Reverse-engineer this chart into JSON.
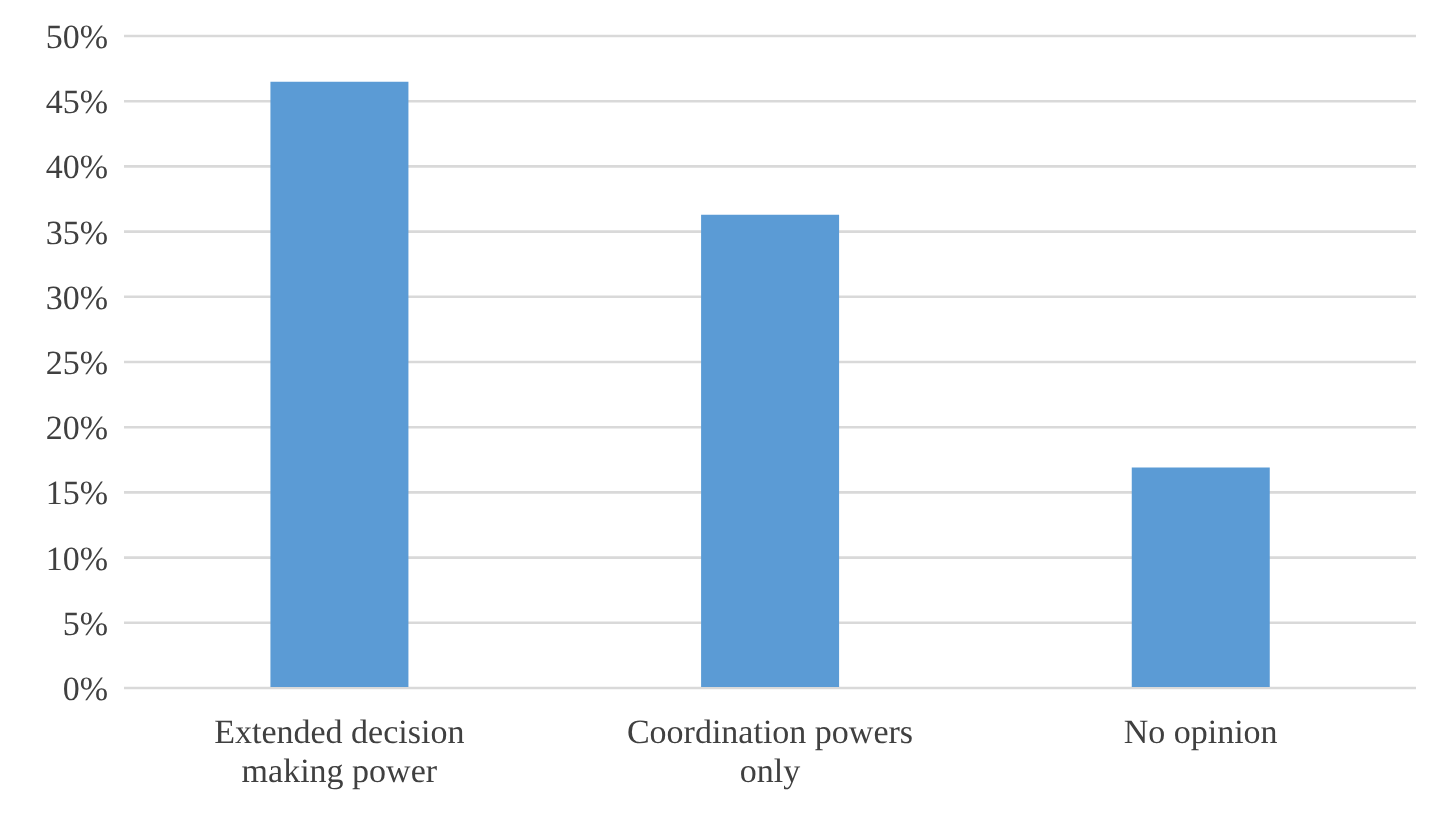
{
  "chart_data": {
    "type": "bar",
    "categories": [
      "Extended decision making power",
      "Coordination powers only",
      "No opinion"
    ],
    "values": [
      46.5,
      36.3,
      16.9
    ],
    "color": "#5b9bd5",
    "ylim": [
      0,
      50
    ],
    "yticks": [
      {
        "value": 0,
        "label": "0%"
      },
      {
        "value": 5,
        "label": "5%"
      },
      {
        "value": 10,
        "label": "10%"
      },
      {
        "value": 15,
        "label": "15%"
      },
      {
        "value": 20,
        "label": "20%"
      },
      {
        "value": 25,
        "label": "25%"
      },
      {
        "value": 30,
        "label": "30%"
      },
      {
        "value": 35,
        "label": "35%"
      },
      {
        "value": 40,
        "label": "40%"
      },
      {
        "value": 45,
        "label": "45%"
      },
      {
        "value": 50,
        "label": "50%"
      }
    ],
    "grid": "y"
  }
}
